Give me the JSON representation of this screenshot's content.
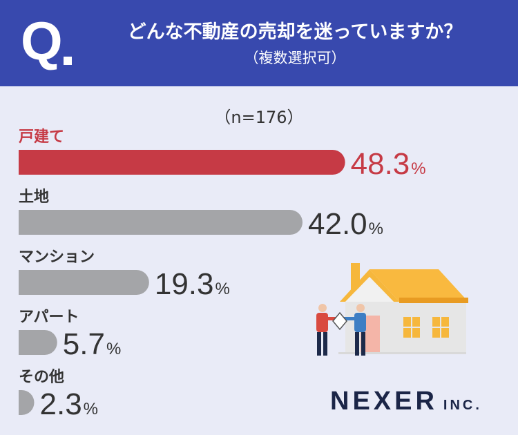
{
  "header": {
    "q_mark": "Q",
    "title": "どんな不動産の売却を迷っていますか？",
    "subtitle": "（複数選択可）"
  },
  "sample_label": "（n=176）",
  "colors": {
    "header_bg": "#3849ae",
    "highlight": "#c63a45",
    "bar_gray": "#a4a5a8",
    "text": "#333333"
  },
  "chart_data": {
    "type": "bar",
    "orientation": "horizontal",
    "categories": [
      "戸建て",
      "土地",
      "マンション",
      "アパート",
      "その他"
    ],
    "values": [
      48.3,
      42.0,
      19.3,
      5.7,
      2.3
    ],
    "value_labels": [
      "48.3",
      "42.0",
      "19.3",
      "5.7",
      "2.3"
    ],
    "unit": "%",
    "highlight_index": 0,
    "xlim": [
      0,
      56
    ]
  },
  "logo": {
    "main": "NEXER",
    "sub": "INC."
  },
  "illustration": {
    "icon": "house-handshake-icon"
  }
}
